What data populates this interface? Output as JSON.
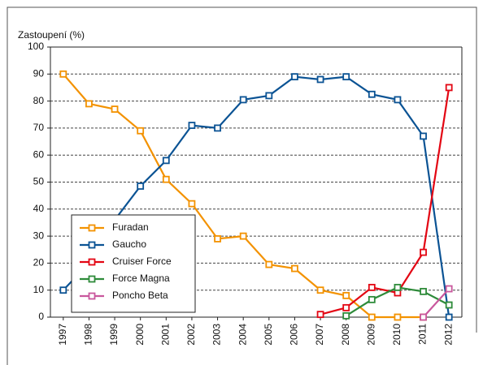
{
  "chart_data": {
    "type": "line",
    "y_label": "Zastoupení (%)",
    "categories": [
      "1997",
      "1998",
      "1999",
      "2000",
      "2001",
      "2002",
      "2003",
      "2004",
      "2005",
      "2006",
      "2007",
      "2008",
      "2009",
      "2010",
      "2011",
      "2012"
    ],
    "series": [
      {
        "name": "Furadan",
        "color": "#f39200",
        "values": [
          90,
          79,
          77,
          69,
          51,
          42,
          29,
          30,
          19.5,
          18,
          10,
          8,
          0,
          0,
          0,
          null
        ]
      },
      {
        "name": "Gaucho",
        "color": "#0b5394",
        "values": [
          10,
          20,
          36,
          48.5,
          58,
          71,
          70,
          80.5,
          82,
          89,
          88,
          89,
          82.5,
          80.5,
          67,
          0
        ]
      },
      {
        "name": "Cruiser Force",
        "color": "#e30613",
        "values": [
          null,
          null,
          null,
          null,
          null,
          null,
          null,
          null,
          null,
          null,
          1,
          3.5,
          11,
          9,
          24,
          85
        ]
      },
      {
        "name": "Force Magna",
        "color": "#2e8b3a",
        "values": [
          null,
          null,
          null,
          null,
          null,
          null,
          null,
          null,
          null,
          null,
          null,
          0.5,
          6.5,
          11,
          9.5,
          4.5
        ]
      },
      {
        "name": "Poncho Beta",
        "color": "#c9579d",
        "values": [
          null,
          null,
          null,
          null,
          null,
          null,
          null,
          null,
          null,
          null,
          null,
          null,
          null,
          null,
          0,
          10.5
        ]
      }
    ],
    "ylim": [
      0,
      100
    ],
    "yticks": [
      0,
      10,
      20,
      30,
      40,
      50,
      60,
      70,
      80,
      90,
      100
    ],
    "grid": true
  }
}
